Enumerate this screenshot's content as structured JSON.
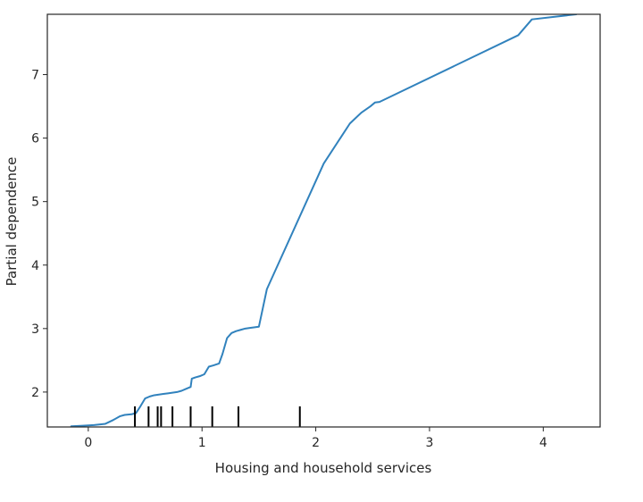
{
  "chart_data": {
    "type": "line",
    "title": "",
    "xlabel": "Housing and household services",
    "ylabel": "Partial dependence",
    "xlim": [
      -0.36,
      4.5
    ],
    "ylim": [
      1.45,
      7.95
    ],
    "xticks": [
      0,
      1,
      2,
      3,
      4
    ],
    "yticks": [
      2,
      3,
      4,
      5,
      6,
      7
    ],
    "xtick_labels": [
      "0",
      "1",
      "2",
      "3",
      "4"
    ],
    "ytick_labels": [
      "2",
      "3",
      "4",
      "5",
      "6",
      "7"
    ],
    "grid": false,
    "line_color": "#3182bd",
    "series": [
      {
        "x": [
          -0.15,
          -0.05,
          0.05,
          0.15,
          0.22,
          0.28,
          0.32,
          0.38,
          0.42,
          0.46,
          0.5,
          0.54,
          0.58,
          0.62,
          0.66,
          0.7,
          0.74,
          0.78,
          0.82,
          0.86,
          0.9,
          0.91,
          0.94,
          0.98,
          1.02,
          1.06,
          1.1,
          1.15,
          1.18,
          1.22,
          1.26,
          1.3,
          1.34,
          1.38,
          1.42,
          1.5,
          1.57,
          2.07,
          2.3,
          2.4,
          2.48,
          2.52,
          2.56,
          3.78,
          3.9,
          4.29
        ],
        "y": [
          1.46,
          1.47,
          1.48,
          1.5,
          1.56,
          1.62,
          1.64,
          1.65,
          1.67,
          1.78,
          1.9,
          1.93,
          1.95,
          1.96,
          1.97,
          1.98,
          1.99,
          2.0,
          2.02,
          2.05,
          2.08,
          2.21,
          2.23,
          2.25,
          2.28,
          2.4,
          2.42,
          2.45,
          2.6,
          2.85,
          2.93,
          2.96,
          2.98,
          3.0,
          3.01,
          3.03,
          3.62,
          5.6,
          6.23,
          6.4,
          6.5,
          6.56,
          6.57,
          7.62,
          7.87,
          7.95
        ]
      }
    ],
    "rug_deciles": [
      0.41,
      0.53,
      0.61,
      0.64,
      0.74,
      0.9,
      1.09,
      1.32,
      1.86
    ]
  }
}
